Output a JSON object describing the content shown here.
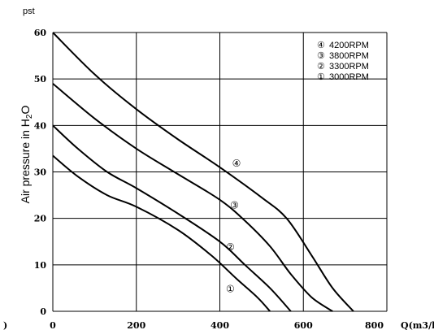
{
  "chart_data": {
    "type": "line",
    "title": "",
    "unit_label": "pst",
    "xlabel": "Q(m3/h)",
    "ylabel_parts": [
      "Air pressure in H",
      "2",
      "O"
    ],
    "xlim": [
      0,
      800
    ],
    "ylim": [
      0,
      60
    ],
    "x_ticks": [
      0,
      200,
      400,
      600,
      800
    ],
    "y_ticks": [
      0,
      10,
      20,
      30,
      40,
      50,
      60
    ],
    "x_tick_labels": [
      "0",
      "200",
      "400",
      "600",
      "800"
    ],
    "y_tick_labels": [
      "0",
      "10",
      "20",
      "30",
      "40",
      "50",
      "60"
    ],
    "left_edge_mark": ")",
    "grid": true,
    "legend_position": "top-right",
    "series": [
      {
        "name": "4200RPM",
        "marker": "④",
        "label_at": [
          440,
          32
        ],
        "points": [
          [
            0,
            60
          ],
          [
            100,
            51
          ],
          [
            200,
            43.5
          ],
          [
            300,
            37
          ],
          [
            400,
            31
          ],
          [
            500,
            24.5
          ],
          [
            560,
            20
          ],
          [
            620,
            12
          ],
          [
            670,
            5
          ],
          [
            720,
            0
          ]
        ]
      },
      {
        "name": "3800RPM",
        "marker": "③",
        "label_at": [
          435,
          23
        ],
        "points": [
          [
            0,
            49
          ],
          [
            100,
            41.5
          ],
          [
            200,
            35
          ],
          [
            300,
            29.5
          ],
          [
            400,
            24
          ],
          [
            460,
            19.5
          ],
          [
            520,
            14
          ],
          [
            570,
            8
          ],
          [
            620,
            3
          ],
          [
            670,
            0
          ]
        ]
      },
      {
        "name": "3300RPM",
        "marker": "②",
        "label_at": [
          425,
          14
        ],
        "points": [
          [
            0,
            40
          ],
          [
            60,
            35
          ],
          [
            130,
            30
          ],
          [
            200,
            26.5
          ],
          [
            300,
            21
          ],
          [
            400,
            15
          ],
          [
            460,
            10
          ],
          [
            520,
            5
          ],
          [
            570,
            0
          ]
        ]
      },
      {
        "name": "3000RPM",
        "marker": "①",
        "label_at": [
          425,
          5
        ],
        "points": [
          [
            0,
            33.5
          ],
          [
            60,
            29
          ],
          [
            130,
            25
          ],
          [
            200,
            22.5
          ],
          [
            300,
            17.5
          ],
          [
            380,
            12
          ],
          [
            440,
            7
          ],
          [
            490,
            3
          ],
          [
            520,
            0
          ]
        ]
      }
    ]
  }
}
